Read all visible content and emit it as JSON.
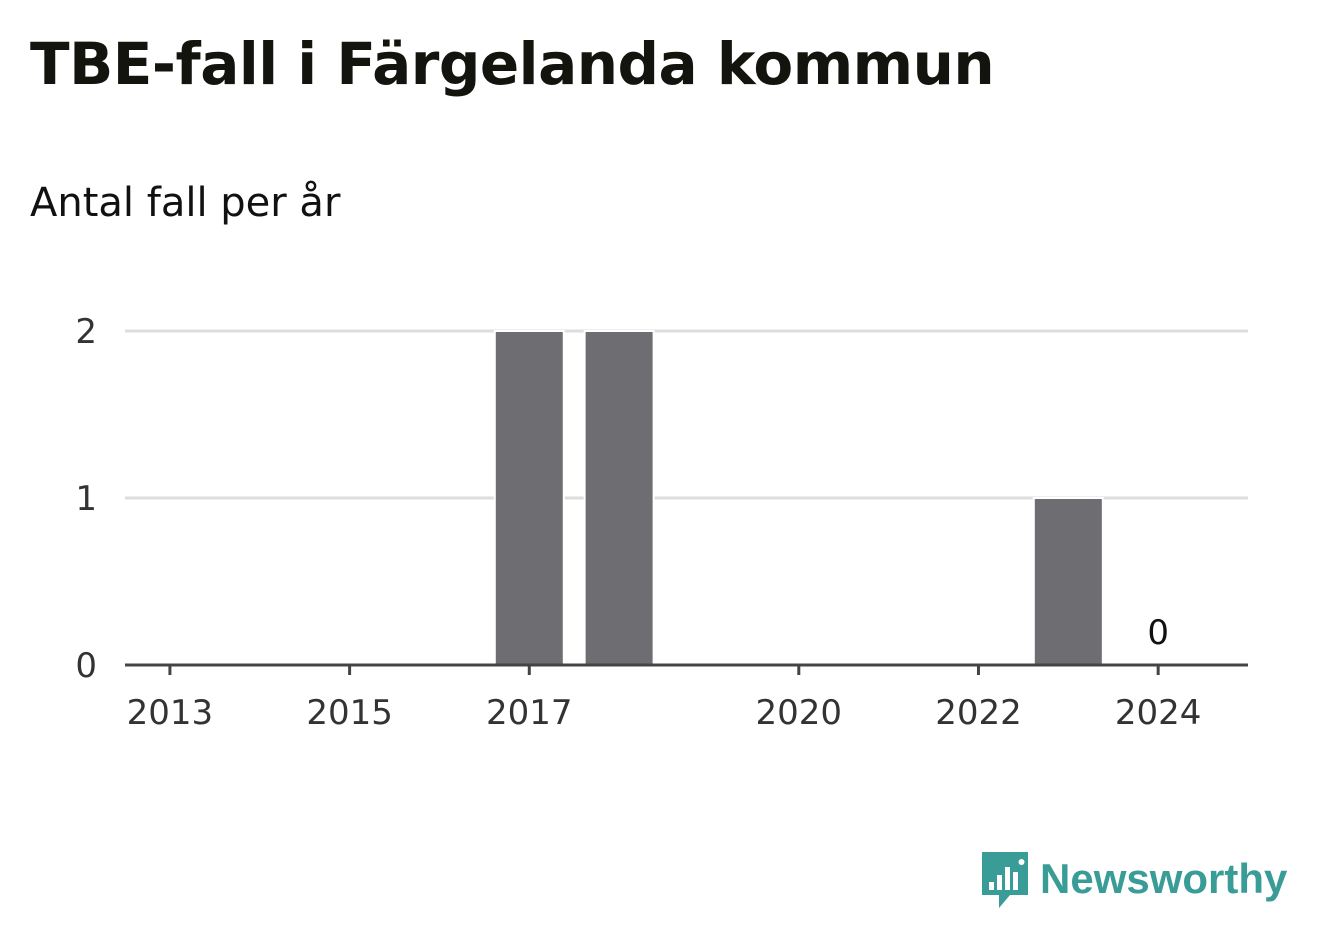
{
  "header": {
    "title": "TBE-fall i Färgelanda kommun",
    "subtitle": "Antal fall per år"
  },
  "chart_data": {
    "type": "bar",
    "x": [
      2013,
      2014,
      2015,
      2016,
      2017,
      2018,
      2019,
      2020,
      2021,
      2022,
      2023,
      2024
    ],
    "values": [
      0,
      0,
      0,
      0,
      2,
      2,
      0,
      0,
      0,
      0,
      1,
      0
    ],
    "xticks": [
      2013,
      2015,
      2017,
      2020,
      2022,
      2024
    ],
    "yticks": [
      0,
      1,
      2
    ],
    "ylim": [
      0,
      2
    ],
    "grid": true,
    "bar_color": "#6e6d72",
    "data_labels": [
      {
        "x": 2024,
        "label": "0"
      }
    ]
  },
  "branding": {
    "name": "Newsworthy",
    "color": "#3a9c96",
    "icon": "bar-chart-speech-bubble-icon"
  }
}
